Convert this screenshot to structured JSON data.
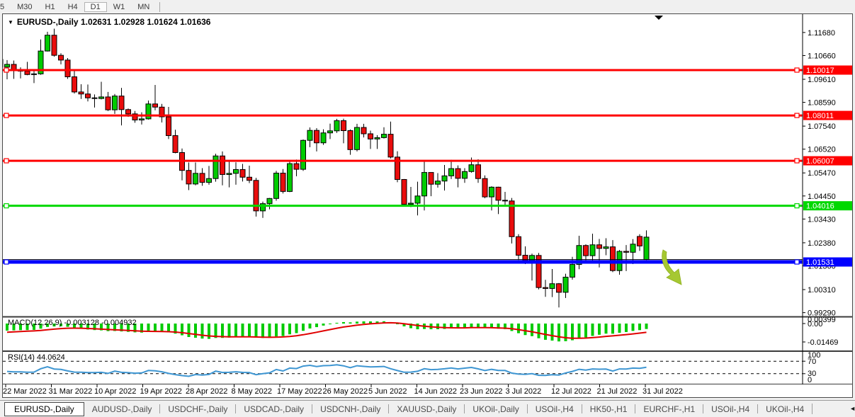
{
  "toolbar": {
    "timeframes": [
      {
        "label": "5",
        "active": false
      },
      {
        "label": "M30",
        "active": false
      },
      {
        "label": "H1",
        "active": false
      },
      {
        "label": "H4",
        "active": false
      },
      {
        "label": "D1",
        "active": true
      },
      {
        "label": "W1",
        "active": false
      },
      {
        "label": "MN",
        "active": false
      }
    ]
  },
  "chart": {
    "title": "EURUSD-,Daily",
    "ohlc_text": "1.02631 1.02928 1.01624 1.01636"
  },
  "chart_data": {
    "type": "candlestick",
    "symbol": "EURUSD-",
    "period": "Daily",
    "current_bar": {
      "open": 1.02631,
      "high": 1.02928,
      "low": 1.01624,
      "close": 1.01636
    },
    "colors": {
      "bull": "#00cb00",
      "bear": "#e90d0d",
      "outline": "#000000"
    },
    "candles": [
      [
        1.1015,
        1.1046,
        1.0961,
        1.1027
      ],
      [
        1.1027,
        1.1044,
        1.0963,
        1.1003
      ],
      [
        1.1003,
        1.1014,
        1.0965,
        1.0997
      ],
      [
        1.0997,
        1.1038,
        1.0979,
        1.0982
      ],
      [
        1.0982,
        1.0999,
        1.0944,
        1.0985
      ],
      [
        1.0985,
        1.1137,
        1.0981,
        1.1086
      ],
      [
        1.1086,
        1.1171,
        1.1084,
        1.1156
      ],
      [
        1.1156,
        1.1185,
        1.1061,
        1.1067
      ],
      [
        1.1067,
        1.1076,
        1.1027,
        1.1046
      ],
      [
        1.1046,
        1.1055,
        1.0963,
        1.0972
      ],
      [
        1.0972,
        1.0999,
        1.0898,
        1.0905
      ],
      [
        1.0905,
        1.0939,
        1.0874,
        1.0896
      ],
      [
        1.0896,
        1.0938,
        1.0863,
        1.0879
      ],
      [
        1.0879,
        1.0894,
        1.0836,
        1.0876
      ],
      [
        1.0876,
        1.095,
        1.0872,
        1.0883
      ],
      [
        1.0883,
        1.0905,
        1.0821,
        1.0826
      ],
      [
        1.0826,
        1.0896,
        1.0808,
        1.0887
      ],
      [
        1.0887,
        1.0923,
        1.0757,
        1.0827
      ],
      [
        1.0827,
        1.0832,
        1.0795,
        1.0808
      ],
      [
        1.0808,
        1.0821,
        1.0769,
        1.0781
      ],
      [
        1.0781,
        1.0815,
        1.0761,
        1.0786
      ],
      [
        1.0786,
        1.0867,
        1.0783,
        1.0852
      ],
      [
        1.0852,
        1.0936,
        1.0824,
        1.0838
      ],
      [
        1.0838,
        1.0852,
        1.077,
        1.0795
      ],
      [
        1.0795,
        1.0839,
        1.0697,
        1.0712
      ],
      [
        1.0712,
        1.0738,
        1.0634,
        1.0637
      ],
      [
        1.0637,
        1.0655,
        1.0514,
        1.0558
      ],
      [
        1.0558,
        1.0593,
        1.0471,
        1.0498
      ],
      [
        1.0498,
        1.0593,
        1.0492,
        1.0545
      ],
      [
        1.0545,
        1.0568,
        1.049,
        1.0505
      ],
      [
        1.0505,
        1.0578,
        1.0495,
        1.0522
      ],
      [
        1.0522,
        1.0632,
        1.0508,
        1.0622
      ],
      [
        1.0622,
        1.0642,
        1.0492,
        1.054
      ],
      [
        1.054,
        1.0599,
        1.0483,
        1.0545
      ],
      [
        1.0545,
        1.0594,
        1.0495,
        1.0562
      ],
      [
        1.0562,
        1.0587,
        1.0509,
        1.0528
      ],
      [
        1.0528,
        1.0579,
        1.0502,
        1.0514
      ],
      [
        1.0514,
        1.0525,
        1.0354,
        1.0379
      ],
      [
        1.0379,
        1.042,
        1.0348,
        1.0411
      ],
      [
        1.0411,
        1.0436,
        1.0386,
        1.0434
      ],
      [
        1.0434,
        1.0556,
        1.0424,
        1.0546
      ],
      [
        1.0546,
        1.0564,
        1.0456,
        1.0465
      ],
      [
        1.0465,
        1.0598,
        1.0462,
        1.0588
      ],
      [
        1.0588,
        1.0606,
        1.0532,
        1.0563
      ],
      [
        1.0563,
        1.0695,
        1.0556,
        1.0691
      ],
      [
        1.0691,
        1.0748,
        1.0661,
        1.0735
      ],
      [
        1.0735,
        1.0745,
        1.0642,
        1.068
      ],
      [
        1.068,
        1.074,
        1.0671,
        1.0724
      ],
      [
        1.0724,
        1.0765,
        1.0697,
        1.0733
      ],
      [
        1.0733,
        1.0786,
        1.0724,
        1.0778
      ],
      [
        1.0778,
        1.0787,
        1.0678,
        1.0734
      ],
      [
        1.0734,
        1.0739,
        1.0627,
        1.065
      ],
      [
        1.065,
        1.0764,
        1.0642,
        1.0748
      ],
      [
        1.0748,
        1.0764,
        1.0704,
        1.072
      ],
      [
        1.072,
        1.0734,
        1.0653,
        1.0697
      ],
      [
        1.0697,
        1.0714,
        1.0653,
        1.0703
      ],
      [
        1.0703,
        1.0749,
        1.0699,
        1.0718
      ],
      [
        1.0718,
        1.0774,
        1.0611,
        1.0617
      ],
      [
        1.0617,
        1.0643,
        1.0506,
        1.0518
      ],
      [
        1.0518,
        1.052,
        1.0399,
        1.0408
      ],
      [
        1.0408,
        1.0485,
        1.0396,
        1.0413
      ],
      [
        1.0413,
        1.0508,
        1.0359,
        1.0445
      ],
      [
        1.0445,
        1.0601,
        1.0381,
        1.0549
      ],
      [
        1.0549,
        1.0549,
        1.0444,
        1.0497
      ],
      [
        1.0497,
        1.0546,
        1.0482,
        1.0511
      ],
      [
        1.0511,
        1.0582,
        1.0469,
        1.0534
      ],
      [
        1.0534,
        1.0605,
        1.052,
        1.0566
      ],
      [
        1.0566,
        1.058,
        1.0483,
        1.0523
      ],
      [
        1.0523,
        1.0568,
        1.0503,
        1.0553
      ],
      [
        1.0553,
        1.0615,
        1.0548,
        1.0583
      ],
      [
        1.0583,
        1.0607,
        1.0503,
        1.0522
      ],
      [
        1.0522,
        1.0536,
        1.0435,
        1.0441
      ],
      [
        1.0441,
        1.0488,
        1.0381,
        1.0484
      ],
      [
        1.0484,
        1.0486,
        1.0365,
        1.0426
      ],
      [
        1.0426,
        1.0463,
        1.0406,
        1.0423
      ],
      [
        1.0423,
        1.0436,
        1.0235,
        1.0265
      ],
      [
        1.0265,
        1.0276,
        1.0162,
        1.0183
      ],
      [
        1.0183,
        1.0222,
        1.0144,
        1.016
      ],
      [
        1.016,
        1.019,
        1.0071,
        1.0182
      ],
      [
        1.0182,
        1.0193,
        1.0032,
        1.004
      ],
      [
        1.004,
        1.0074,
        0.9999,
        1.0036
      ],
      [
        1.0036,
        1.0122,
        0.9998,
        1.0057
      ],
      [
        1.0057,
        1.006,
        0.9952,
        1.0019
      ],
      [
        1.0019,
        1.0101,
        0.9994,
        1.0086
      ],
      [
        1.0086,
        1.0176,
        1.0075,
        1.0142
      ],
      [
        1.0142,
        1.0269,
        1.0121,
        1.0226
      ],
      [
        1.0226,
        1.0231,
        1.0155,
        1.0181
      ],
      [
        1.0181,
        1.0278,
        1.0152,
        1.0229
      ],
      [
        1.0229,
        1.0255,
        1.0129,
        1.0213
      ],
      [
        1.0213,
        1.0258,
        1.0183,
        1.022
      ],
      [
        1.022,
        1.025,
        1.0108,
        1.0115
      ],
      [
        1.0115,
        1.0206,
        1.0097,
        1.02
      ],
      [
        1.02,
        1.0228,
        1.0113,
        1.0196
      ],
      [
        1.0196,
        1.0254,
        1.0144,
        1.0232
      ],
      [
        1.0266,
        1.0276,
        1.0202,
        1.0224
      ],
      [
        1.0164,
        1.0293,
        1.0162,
        1.0263
      ]
    ],
    "price_ticks": [
      "1.11680",
      "1.10660",
      "1.09610",
      "1.08590",
      "1.07540",
      "1.06520",
      "1.05470",
      "1.04450",
      "1.03430",
      "1.02380",
      "1.01360",
      "1.00310",
      "0.99290"
    ],
    "date_ticks": [
      "22 Mar 2022",
      "31 Mar 2022",
      "10 Apr 2022",
      "19 Apr 2022",
      "28 Apr 2022",
      "8 May 2022",
      "17 May 2022",
      "26 May 2022",
      "5 Jun 2022",
      "14 Jun 2022",
      "23 Jun 2022",
      "3 Jul 2022",
      "12 Jul 2022",
      "21 Jul 2022",
      "31 Jul 2022"
    ],
    "hlines": [
      {
        "price": 1.10017,
        "label": "1.10017",
        "color": "#ff0000",
        "width": 3
      },
      {
        "price": 1.08011,
        "label": "1.08011",
        "color": "#ff0000",
        "width": 3
      },
      {
        "price": 1.06007,
        "label": "1.06007",
        "color": "#ff0000",
        "width": 3
      },
      {
        "price": 1.04016,
        "label": "1.04016",
        "color": "#00d800",
        "width": 3
      },
      {
        "price": 1.01531,
        "label": "1.01531",
        "color": "#0000ff",
        "width": 5
      }
    ],
    "bid_line": {
      "price": 1.01636,
      "color": "#000000",
      "width": 1
    },
    "macd": {
      "label_text": "MACD(12,26,9) -0.003128 -0.004932",
      "params": [
        12,
        26,
        9
      ],
      "current_values": [
        -0.003128,
        -0.004932
      ],
      "axis_labels": [
        "0.00399",
        "0.00",
        "-0.01469"
      ],
      "hist_color": "#00cb00",
      "signal_color": "#e00000"
    },
    "rsi": {
      "label_text": "RSI(14) 44.0624",
      "period": 14,
      "current_value": 44.0624,
      "levels": [
        "100",
        "70",
        "30",
        "0"
      ],
      "color": "#3e96d2"
    },
    "arrow": {
      "type": "sell-arrow",
      "color": "#a6c832"
    }
  },
  "tabs": {
    "items": [
      {
        "label": "EURUSD-,Daily",
        "active": true
      },
      {
        "label": "AUDUSD-,Daily",
        "active": false
      },
      {
        "label": "USDCHF-,Daily",
        "active": false
      },
      {
        "label": "USDCAD-,Daily",
        "active": false
      },
      {
        "label": "USDCNH-,Daily",
        "active": false
      },
      {
        "label": "XAUUSD-,Daily",
        "active": false
      },
      {
        "label": "UKOil-,Daily",
        "active": false
      },
      {
        "label": "USOil-,H4",
        "active": false
      },
      {
        "label": "HK50-,H1",
        "active": false
      },
      {
        "label": "EURCHF-,H1",
        "active": false
      },
      {
        "label": "USOil-,H4",
        "active": false
      },
      {
        "label": "UKOil-,H4",
        "active": false
      }
    ],
    "nav": {
      "left": "◄",
      "right": "►"
    }
  }
}
